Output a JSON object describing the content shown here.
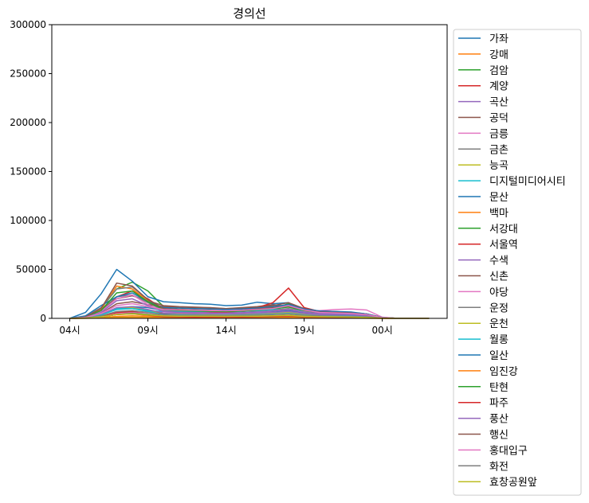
{
  "chart_data": {
    "type": "line",
    "title": "경의선",
    "xlabel": "",
    "ylabel": "",
    "x_ticks": [
      "04시",
      "09시",
      "14시",
      "19시",
      "00시"
    ],
    "y_ticks": [
      "0",
      "50000",
      "100000",
      "150000",
      "200000",
      "250000",
      "300000"
    ],
    "ylim": [
      0,
      300000
    ],
    "grid": false,
    "legend_position": "outside right",
    "x": [
      "04시",
      "05시",
      "06시",
      "07시",
      "08시",
      "09시",
      "10시",
      "11시",
      "12시",
      "13시",
      "14시",
      "15시",
      "16시",
      "17시",
      "18시",
      "19시",
      "20시",
      "21시",
      "22시",
      "23시",
      "00시",
      "01시",
      "02시",
      "03시"
    ],
    "series": [
      {
        "name": "가좌",
        "color": "#1f77b4",
        "values": [
          0,
          1000,
          4000,
          10000,
          12000,
          11000,
          8000,
          7000,
          7000,
          6500,
          6000,
          6200,
          6500,
          7000,
          8000,
          6000,
          5000,
          5000,
          4500,
          3500,
          800,
          0,
          0,
          0
        ]
      },
      {
        "name": "강매",
        "color": "#ff7f0e",
        "values": [
          0,
          200,
          800,
          2000,
          2500,
          2000,
          1500,
          1200,
          1100,
          1000,
          1000,
          1000,
          1100,
          1200,
          1400,
          1000,
          800,
          700,
          600,
          400,
          100,
          0,
          0,
          0
        ]
      },
      {
        "name": "검암",
        "color": "#2ca02c",
        "values": [
          0,
          1500,
          10000,
          30000,
          37000,
          28000,
          12000,
          9000,
          8500,
          8000,
          7000,
          7500,
          8500,
          10000,
          15000,
          8000,
          5000,
          4000,
          3500,
          2500,
          500,
          0,
          0,
          0
        ]
      },
      {
        "name": "계양",
        "color": "#d62728",
        "values": [
          0,
          1200,
          7000,
          22000,
          28000,
          20000,
          9000,
          7000,
          6500,
          6000,
          5500,
          6000,
          7000,
          8500,
          13000,
          7000,
          4500,
          3500,
          3000,
          2000,
          400,
          0,
          0,
          0
        ]
      },
      {
        "name": "곡산",
        "color": "#9467bd",
        "values": [
          0,
          300,
          1500,
          4000,
          5000,
          3500,
          2000,
          1800,
          1700,
          1600,
          1500,
          1600,
          1800,
          2000,
          2500,
          1800,
          1400,
          1200,
          1000,
          700,
          150,
          0,
          0,
          0
        ]
      },
      {
        "name": "공덕",
        "color": "#8c564b",
        "values": [
          0,
          2000,
          8000,
          20000,
          23000,
          18000,
          13000,
          12000,
          11500,
          11000,
          10000,
          11000,
          12000,
          14000,
          12000,
          9000,
          7500,
          7000,
          6000,
          4500,
          1000,
          0,
          0,
          0
        ]
      },
      {
        "name": "금릉",
        "color": "#e377c2",
        "values": [
          0,
          400,
          2000,
          5000,
          6000,
          4500,
          2500,
          2200,
          2100,
          2000,
          1900,
          2000,
          2200,
          2500,
          3000,
          2200,
          1700,
          1500,
          1200,
          900,
          200,
          0,
          0,
          0
        ]
      },
      {
        "name": "금촌",
        "color": "#7f7f7f",
        "values": [
          0,
          1500,
          9000,
          22000,
          24000,
          16000,
          8000,
          6500,
          6000,
          5800,
          5500,
          6000,
          7000,
          8500,
          10000,
          7000,
          5500,
          5000,
          4500,
          3000,
          600,
          0,
          0,
          0
        ]
      },
      {
        "name": "능곡",
        "color": "#bcbd22",
        "values": [
          0,
          800,
          4000,
          10000,
          11000,
          8000,
          4500,
          4000,
          3800,
          3700,
          3600,
          3800,
          4200,
          5000,
          6000,
          4200,
          3300,
          3000,
          2600,
          1800,
          400,
          0,
          0,
          0
        ]
      },
      {
        "name": "디지털미디어시티",
        "color": "#17becf",
        "values": [
          0,
          1000,
          4000,
          10000,
          10000,
          8000,
          7000,
          7000,
          7000,
          7000,
          7000,
          7500,
          8000,
          9000,
          12000,
          7000,
          5000,
          4500,
          4000,
          3000,
          600,
          0,
          0,
          0
        ]
      },
      {
        "name": "문산",
        "color": "#1f77b4",
        "values": [
          0,
          6000,
          25000,
          50000,
          38000,
          22000,
          17000,
          16000,
          15000,
          14500,
          13000,
          13500,
          16500,
          15000,
          16000,
          8000,
          5000,
          4500,
          4000,
          3000,
          500,
          0,
          0,
          0
        ]
      },
      {
        "name": "백마",
        "color": "#ff7f0e",
        "values": [
          0,
          1500,
          9000,
          33000,
          30000,
          18000,
          10000,
          9000,
          8500,
          8000,
          7500,
          8000,
          9000,
          10500,
          12000,
          8000,
          6000,
          5500,
          5000,
          3500,
          700,
          0,
          0,
          0
        ]
      },
      {
        "name": "서강대",
        "color": "#2ca02c",
        "values": [
          0,
          300,
          1500,
          4000,
          5000,
          4000,
          2500,
          2200,
          2100,
          2000,
          1900,
          2000,
          2200,
          2500,
          3000,
          2000,
          1500,
          1300,
          1100,
          800,
          150,
          0,
          0,
          0
        ]
      },
      {
        "name": "서울역",
        "color": "#d62728",
        "values": [
          0,
          700,
          2500,
          6000,
          7000,
          6000,
          5000,
          5500,
          5800,
          6000,
          6500,
          8000,
          11000,
          16000,
          31000,
          11000,
          7000,
          6500,
          6000,
          4500,
          900,
          0,
          0,
          0
        ]
      },
      {
        "name": "수색",
        "color": "#9467bd",
        "values": [
          0,
          800,
          4000,
          11000,
          12000,
          9000,
          5500,
          5000,
          4800,
          4700,
          4500,
          4800,
          5300,
          6000,
          7000,
          5000,
          3800,
          3400,
          3000,
          2100,
          450,
          0,
          0,
          0
        ]
      },
      {
        "name": "신촌",
        "color": "#8c564b",
        "values": [
          0,
          1000,
          5000,
          15000,
          17000,
          14000,
          12000,
          11500,
          11000,
          10500,
          10000,
          10500,
          11500,
          13000,
          16000,
          10000,
          7000,
          6500,
          6000,
          4500,
          900,
          0,
          0,
          0
        ]
      },
      {
        "name": "야당",
        "color": "#e377c2",
        "values": [
          0,
          1200,
          7000,
          20000,
          24000,
          14000,
          7000,
          6000,
          5800,
          5500,
          5200,
          5800,
          6500,
          7500,
          9000,
          6500,
          8000,
          9000,
          9500,
          8500,
          1200,
          0,
          0,
          0
        ]
      },
      {
        "name": "운정",
        "color": "#7f7f7f",
        "values": [
          0,
          2000,
          11000,
          30000,
          32000,
          19000,
          10000,
          8500,
          8000,
          7800,
          7500,
          8000,
          9000,
          10500,
          12000,
          8500,
          7000,
          6500,
          6000,
          4000,
          800,
          0,
          0,
          0
        ]
      },
      {
        "name": "운천",
        "color": "#bcbd22",
        "values": [
          0,
          100,
          400,
          1000,
          1200,
          900,
          500,
          450,
          420,
          400,
          380,
          400,
          450,
          500,
          600,
          450,
          350,
          300,
          250,
          180,
          40,
          0,
          0,
          0
        ]
      },
      {
        "name": "월롱",
        "color": "#17becf",
        "values": [
          0,
          600,
          3500,
          9000,
          10000,
          7000,
          4000,
          3500,
          3300,
          3200,
          3100,
          3300,
          3700,
          4300,
          5000,
          3500,
          2700,
          2400,
          2100,
          1500,
          300,
          0,
          0,
          0
        ]
      },
      {
        "name": "일산",
        "color": "#1f77b4",
        "values": [
          0,
          2500,
          13000,
          22000,
          26000,
          17000,
          11000,
          10500,
          10000,
          9500,
          9000,
          9500,
          10500,
          12000,
          14000,
          9500,
          7500,
          7000,
          6500,
          4500,
          900,
          0,
          0,
          0
        ]
      },
      {
        "name": "임진강",
        "color": "#ff7f0e",
        "values": [
          0,
          50,
          200,
          500,
          600,
          450,
          300,
          280,
          260,
          250,
          240,
          260,
          290,
          330,
          380,
          280,
          220,
          200,
          170,
          120,
          30,
          0,
          0,
          0
        ]
      },
      {
        "name": "탄현",
        "color": "#2ca02c",
        "values": [
          0,
          1500,
          8000,
          26000,
          28000,
          17000,
          9000,
          8000,
          7500,
          7200,
          7000,
          7500,
          8500,
          10000,
          11500,
          8000,
          6000,
          5500,
          5000,
          3500,
          700,
          0,
          0,
          0
        ]
      },
      {
        "name": "파주",
        "color": "#d62728",
        "values": [
          0,
          300,
          1500,
          4000,
          4500,
          3200,
          1800,
          1600,
          1500,
          1450,
          1400,
          1500,
          1700,
          2000,
          2400,
          1700,
          1300,
          1150,
          1000,
          700,
          150,
          0,
          0,
          0
        ]
      },
      {
        "name": "풍산",
        "color": "#9467bd",
        "values": [
          0,
          1000,
          6000,
          18000,
          20000,
          13000,
          7000,
          6200,
          5900,
          5600,
          5300,
          5800,
          6500,
          7500,
          9000,
          6300,
          5000,
          4600,
          4200,
          3000,
          600,
          0,
          0,
          0
        ]
      },
      {
        "name": "행신",
        "color": "#8c564b",
        "values": [
          0,
          1500,
          10000,
          36000,
          33000,
          19000,
          10000,
          9000,
          8600,
          8200,
          7800,
          8400,
          9500,
          11000,
          12500,
          8500,
          6500,
          6000,
          5500,
          3800,
          750,
          0,
          0,
          0
        ]
      },
      {
        "name": "홍대입구",
        "color": "#e377c2",
        "values": [
          0,
          1000,
          5000,
          13000,
          15000,
          12000,
          9000,
          8500,
          8300,
          8000,
          7800,
          8200,
          9000,
          10000,
          13000,
          8500,
          6000,
          5500,
          5000,
          3800,
          800,
          0,
          0,
          0
        ]
      },
      {
        "name": "화전",
        "color": "#7f7f7f",
        "values": [
          0,
          500,
          2500,
          7000,
          8000,
          6000,
          3500,
          3100,
          3000,
          2900,
          2800,
          3000,
          3300,
          3800,
          4500,
          3200,
          2500,
          2200,
          1900,
          1400,
          300,
          0,
          0,
          0
        ]
      },
      {
        "name": "효창공원앞",
        "color": "#bcbd22",
        "values": [
          0,
          300,
          1500,
          4000,
          4500,
          3500,
          2500,
          2300,
          2200,
          2100,
          2000,
          2100,
          2300,
          2600,
          3000,
          2100,
          1600,
          1400,
          1200,
          900,
          180,
          0,
          0,
          0
        ]
      }
    ]
  }
}
